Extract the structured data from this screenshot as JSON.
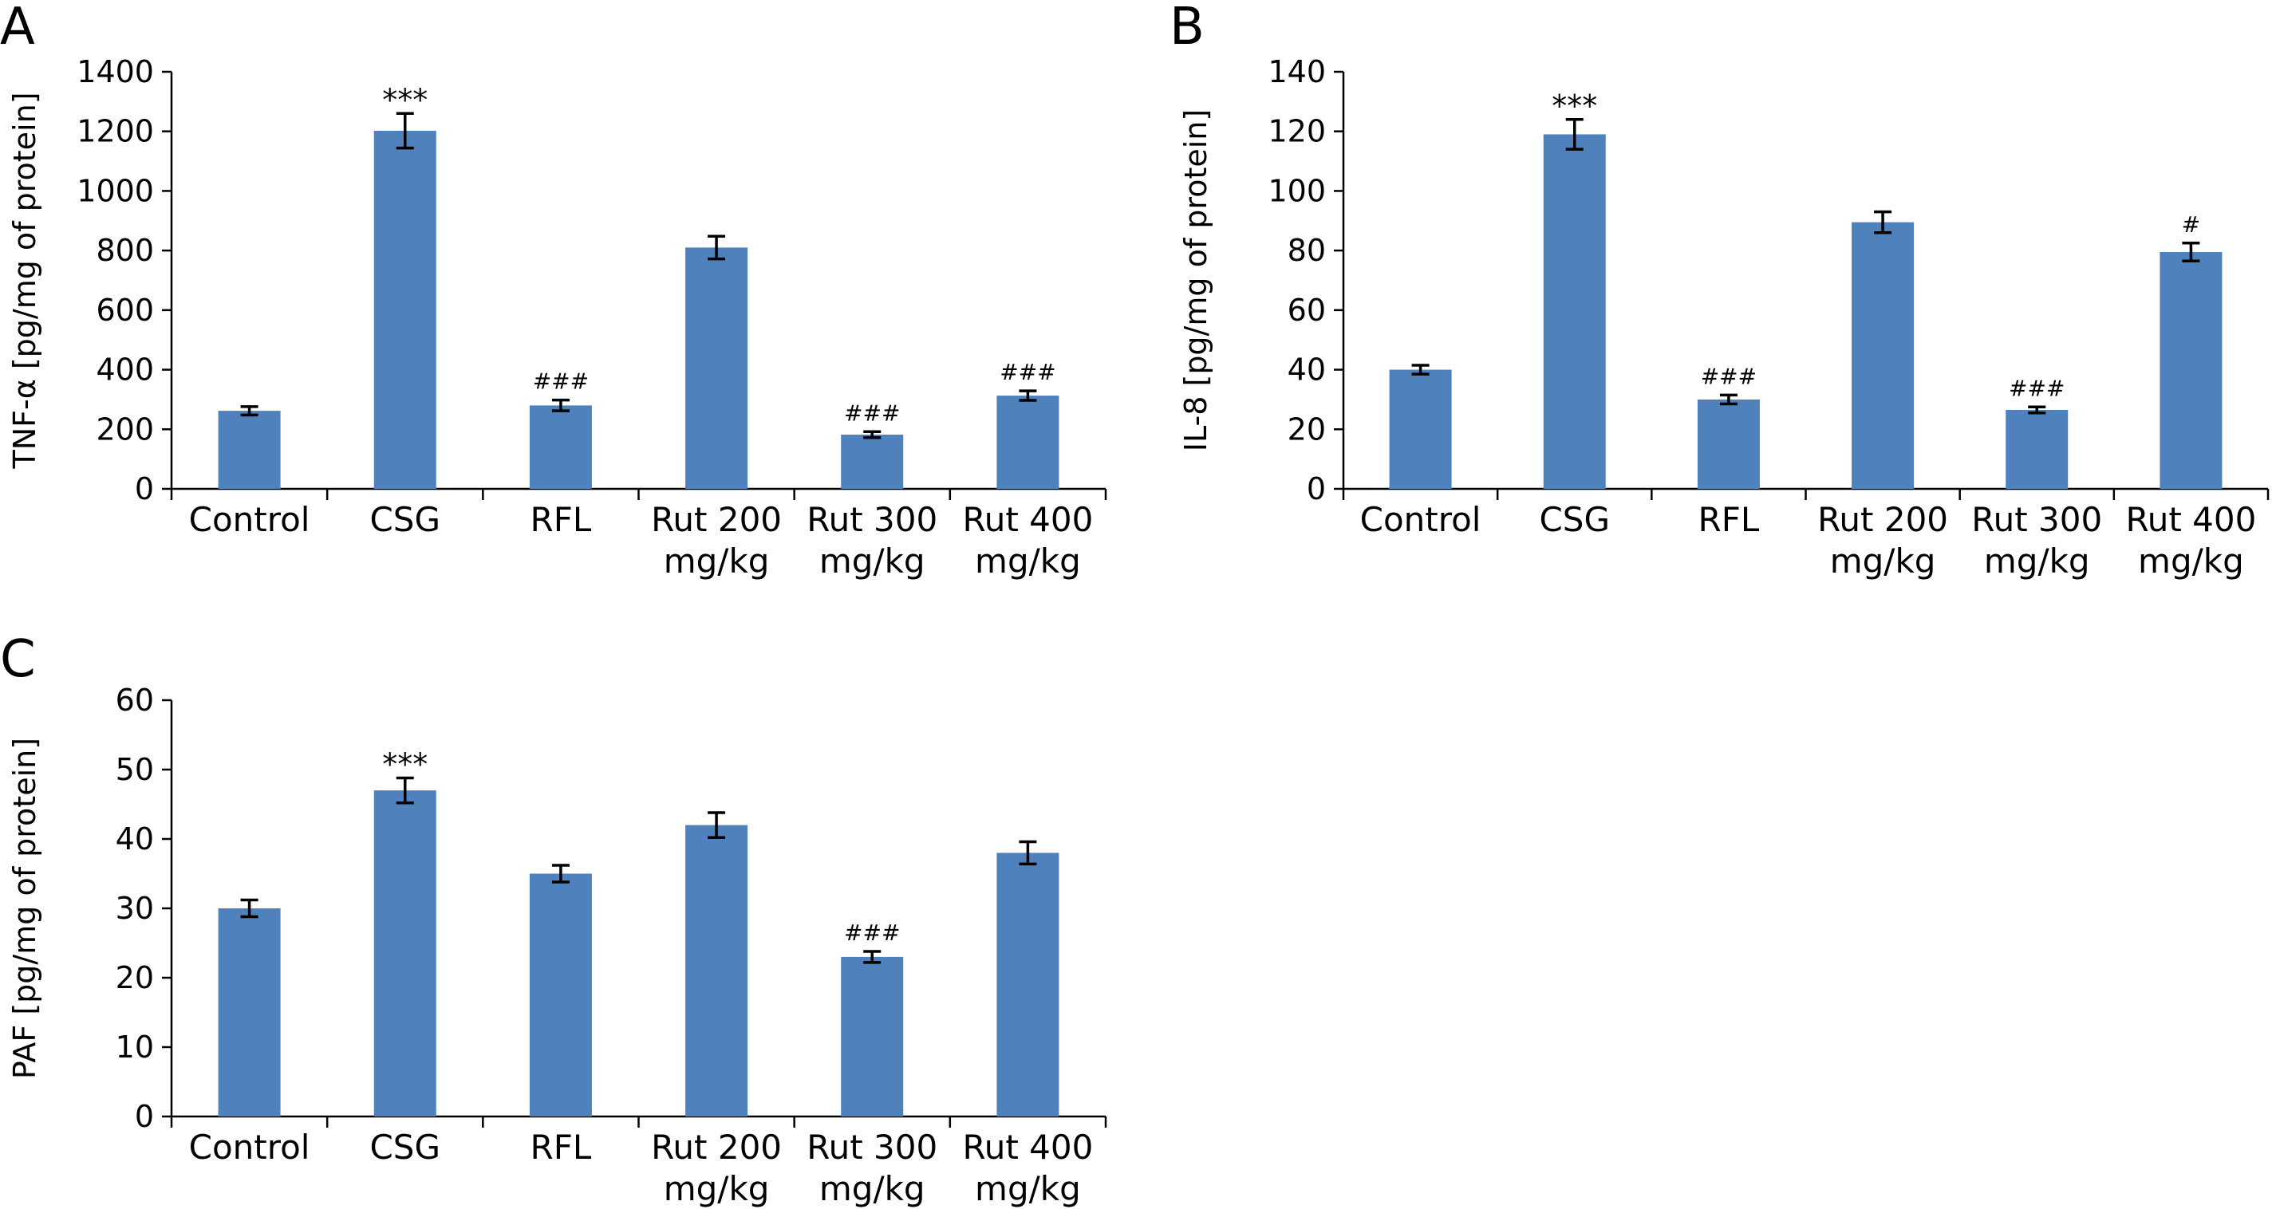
{
  "chart_data": [
    {
      "panel": "A",
      "type": "bar",
      "ylabel": "TNF-α [pg/mg of protein]",
      "ylim": [
        0,
        1400
      ],
      "yticks": [
        0,
        200,
        400,
        600,
        800,
        1000,
        1200,
        1400
      ],
      "categories": [
        [
          "Control"
        ],
        [
          "CSG"
        ],
        [
          "RFL"
        ],
        [
          "Rut 200",
          "mg/kg"
        ],
        [
          "Rut 300",
          "mg/kg"
        ],
        [
          "Rut 400",
          "mg/kg"
        ]
      ],
      "values": [
        262,
        1202,
        280,
        810,
        182,
        313
      ],
      "errors": [
        14,
        58,
        18,
        38,
        10,
        16
      ],
      "annotations": [
        "",
        "***",
        "###",
        "",
        "###",
        "###"
      ],
      "bar_color": "#4f81bd"
    },
    {
      "panel": "B",
      "type": "bar",
      "ylabel": "IL-8 [pg/mg of protein]",
      "ylim": [
        0,
        140
      ],
      "yticks": [
        0,
        20,
        40,
        60,
        80,
        100,
        120,
        140
      ],
      "categories": [
        [
          "Control"
        ],
        [
          "CSG"
        ],
        [
          "RFL"
        ],
        [
          "Rut 200",
          "mg/kg"
        ],
        [
          "Rut 300",
          "mg/kg"
        ],
        [
          "Rut 400",
          "mg/kg"
        ]
      ],
      "values": [
        40,
        119,
        30,
        89.5,
        26.5,
        79.5
      ],
      "errors": [
        1.5,
        5,
        1.5,
        3.5,
        1.0,
        3
      ],
      "annotations": [
        "",
        "***",
        "###",
        "",
        "###",
        "#"
      ],
      "bar_color": "#4f81bd"
    },
    {
      "panel": "C",
      "type": "bar",
      "ylabel": "PAF [pg/mg of protein]",
      "ylim": [
        0,
        60
      ],
      "yticks": [
        0,
        10,
        20,
        30,
        40,
        50,
        60
      ],
      "categories": [
        [
          "Control"
        ],
        [
          "CSG"
        ],
        [
          "RFL"
        ],
        [
          "Rut 200",
          "mg/kg"
        ],
        [
          "Rut 300",
          "mg/kg"
        ],
        [
          "Rut 400",
          "mg/kg"
        ]
      ],
      "values": [
        30,
        47,
        35,
        42,
        23,
        38
      ],
      "errors": [
        1.2,
        1.8,
        1.2,
        1.8,
        0.8,
        1.6
      ],
      "annotations": [
        "",
        "***",
        "",
        "",
        "###",
        ""
      ],
      "bar_color": "#4f81bd"
    }
  ]
}
